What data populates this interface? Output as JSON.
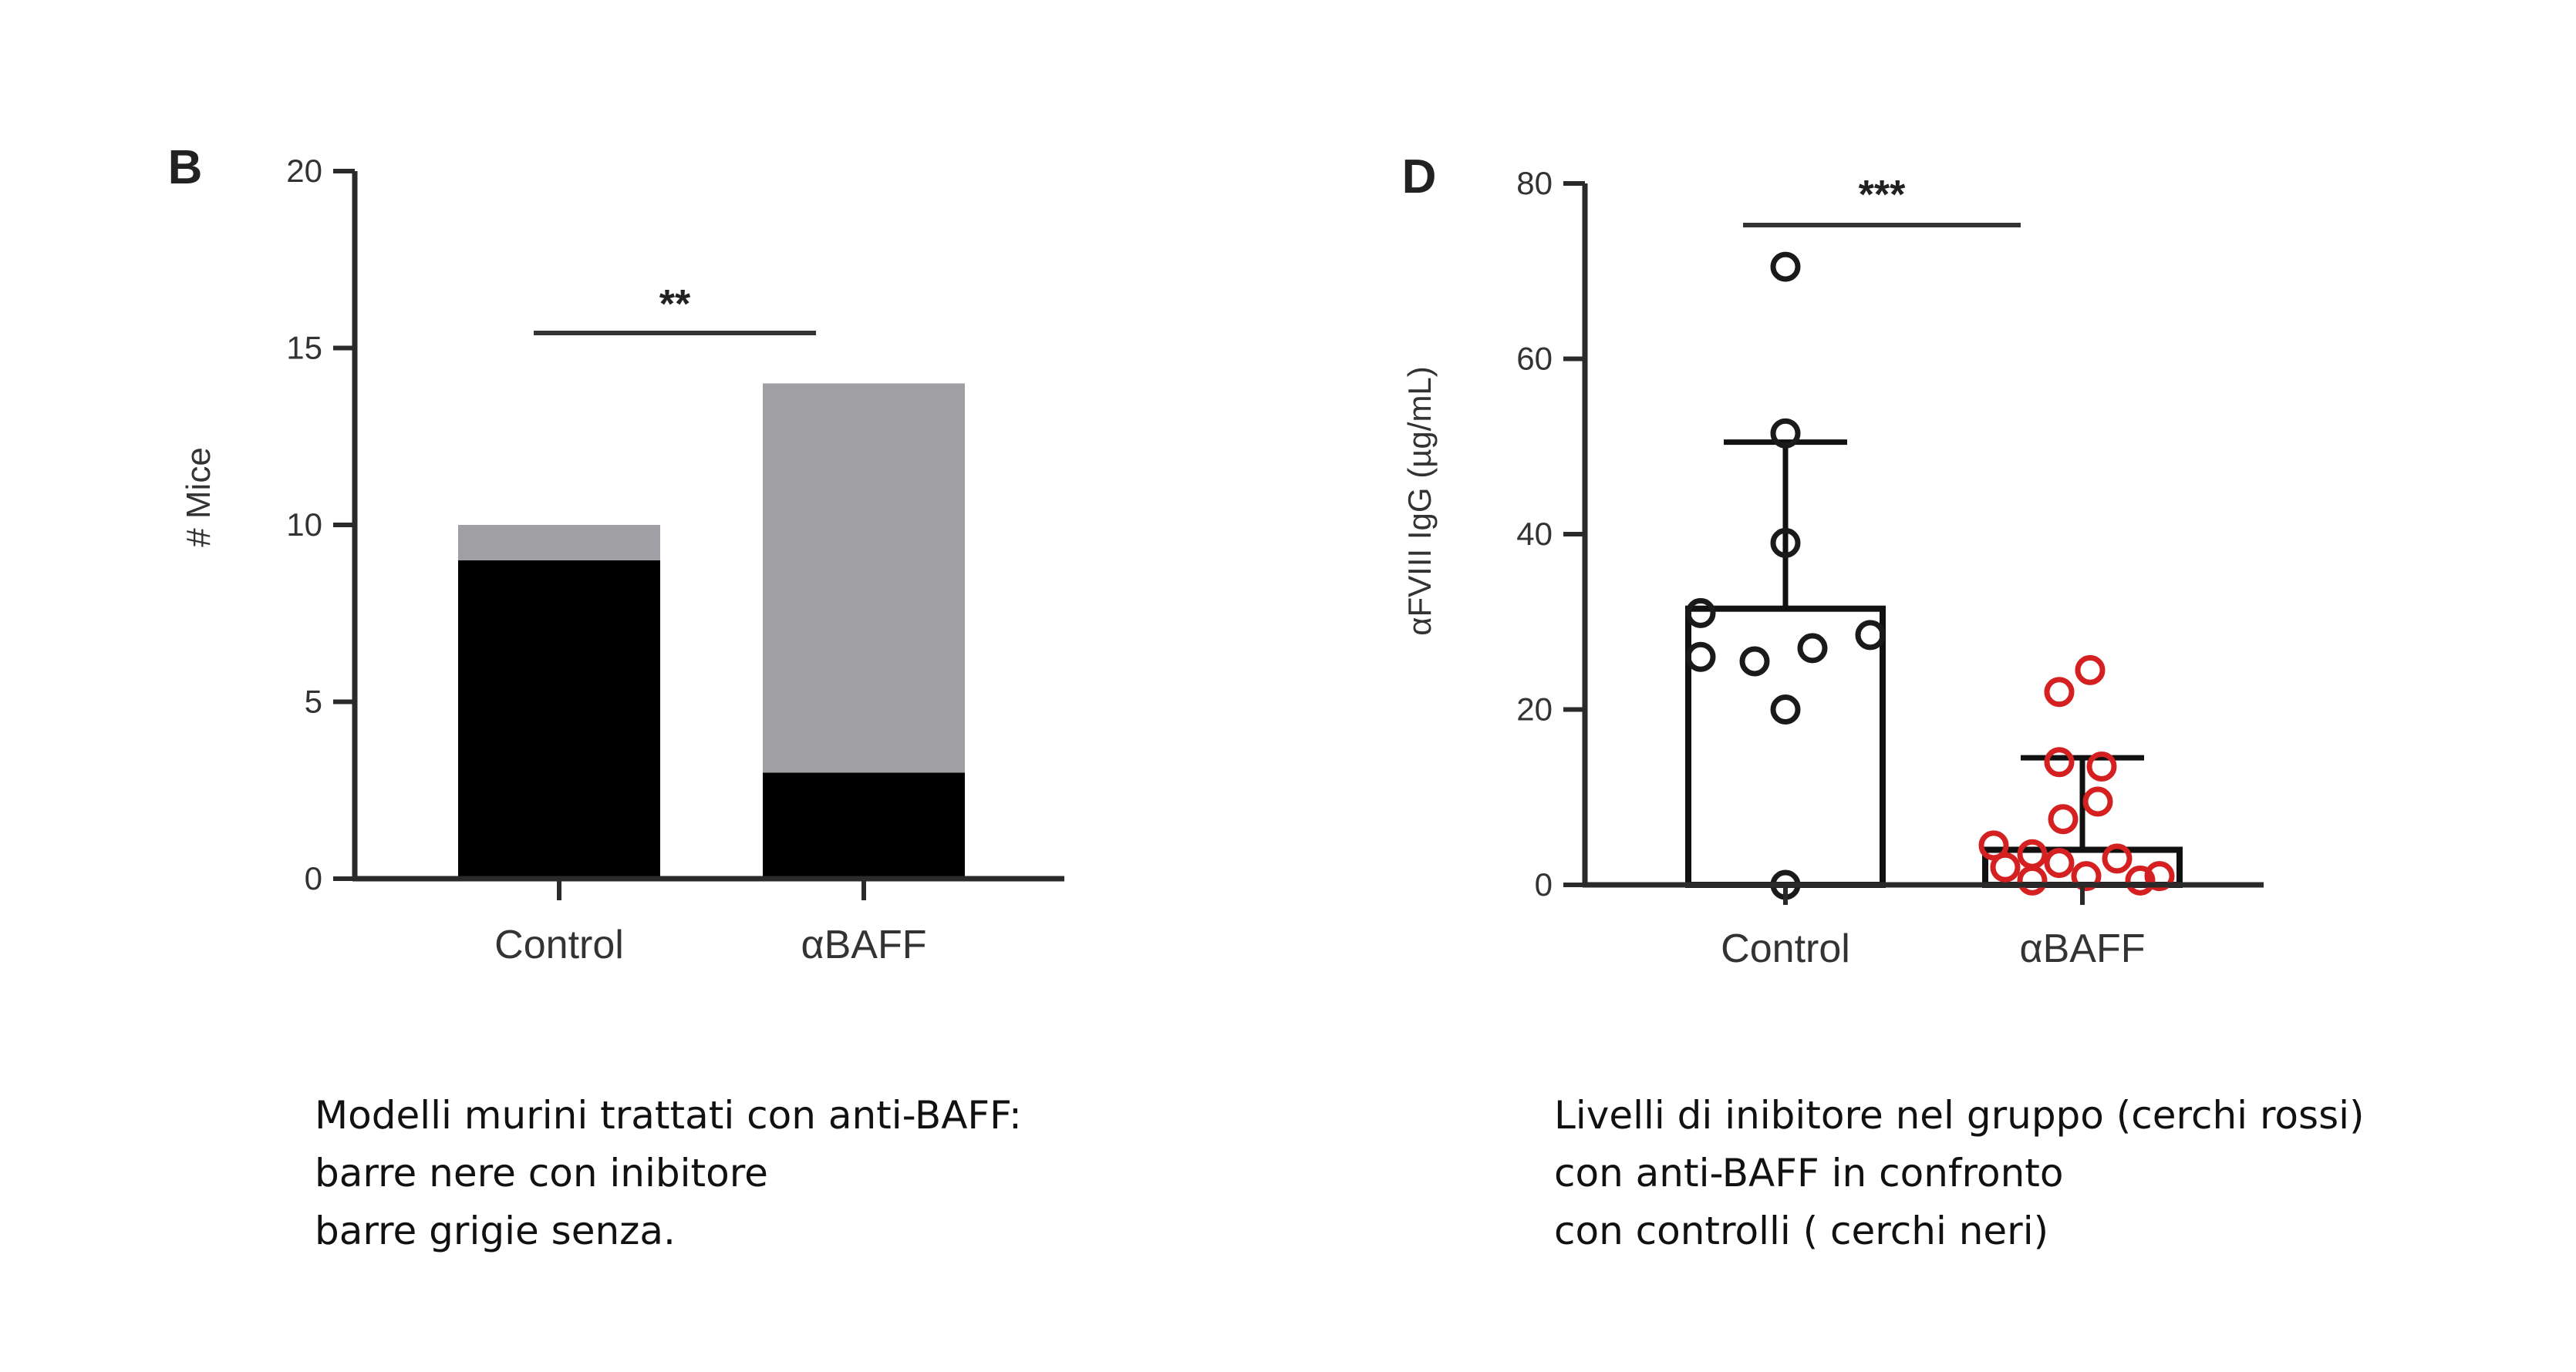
{
  "chart_data": [
    {
      "type": "bar",
      "panel_label": "B",
      "categories": [
        "Control",
        "αBAFF"
      ],
      "series": [
        {
          "values": [
            9,
            3
          ],
          "color": "#000000"
        },
        {
          "values": [
            1,
            11
          ],
          "color": "#a0a0a4"
        }
      ],
      "stacked": true,
      "ylabel": "# Mice",
      "xlabel": "",
      "ylim": [
        0,
        20
      ],
      "yticks": [
        "0",
        "5",
        "10",
        "15",
        "20"
      ],
      "significance": {
        "label": "**",
        "between": [
          "Control",
          "αBAFF"
        ]
      },
      "grid": false,
      "legend": "none"
    },
    {
      "type": "scatter",
      "panel_label": "D",
      "categories": [
        "Control",
        "αBAFF"
      ],
      "series": [
        {
          "category": "Control",
          "color": "#1a1a1a",
          "bar_mean": 31.5,
          "error_upper": 50.5,
          "points": [
            70.5,
            51.5,
            39,
            31,
            28.5,
            27,
            26,
            25.5,
            20,
            0
          ]
        },
        {
          "category": "αBAFF",
          "color": "#d42020",
          "bar_mean": 4,
          "error_upper": 14.5,
          "points": [
            24.5,
            22,
            14,
            13.5,
            9.5,
            7.5,
            4.5,
            3.5,
            3,
            2.5,
            2,
            1,
            1,
            0.5,
            0.5
          ]
        }
      ],
      "ylabel": "αFVIII IgG (µg/mL)",
      "xlabel": "",
      "ylim": [
        0,
        80
      ],
      "yticks": [
        "0",
        "20",
        "40",
        "60",
        "80"
      ],
      "significance": {
        "label": "***",
        "between": [
          "Control",
          "αBAFF"
        ]
      },
      "grid": false,
      "legend": "none"
    }
  ],
  "captions": {
    "b": [
      "Modelli murini trattati con anti-BAFF:",
      "barre nere con inibitore",
      "barre grigie senza."
    ],
    "d": [
      "Livelli di inibitore nel gruppo (cerchi rossi)",
      "con anti-BAFF in confronto",
      "con controlli ( cerchi neri)"
    ]
  }
}
